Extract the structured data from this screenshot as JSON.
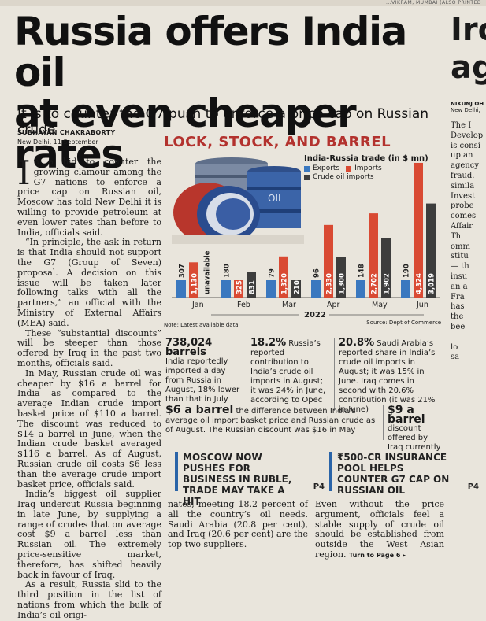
{
  "header": {
    "print_line": "...VIKRAM, MUMBAI (ALSO PRINTED",
    "headline_line1": "Russia offers India oil",
    "headline_line2": "at even cheaper rates",
    "subhead": "It is to counter the G7 push to enforce a price cap on Russian crude",
    "byline": "SUBHAYAN CHAKRABORTY",
    "dateline": "New Delhi, 11 September"
  },
  "sidebar": {
    "headline_line1": "Irc",
    "headline_line2": "ag",
    "byline": "NIKUNJ OH",
    "dateline": "New Delhi,",
    "lines": [
      "The I",
      "Develop",
      "is consi",
      "up an",
      "agency",
      "fraud.",
      "simila",
      "Invest",
      "probe",
      "comes",
      "Affair",
      "Th",
      "omm",
      "stitu",
      "— th",
      "insu",
      "an a",
      "Fra",
      "has",
      "the",
      "bee",
      "",
      "lo",
      "sa"
    ]
  },
  "article": {
    "dropcap": "I",
    "p1": "n a bid to counter the growing clamour among the G7 nations to enforce a price cap on Russian oil, Moscow has told New Delhi it is willing to provide petroleum at even lower rates than before to India, officials said.",
    "p2": "“In principle, the ask in return is that India should not support the G7 (Group of Seven) proposal. A decision on this issue will be taken later following talks with all the partners,” an official with the Ministry of External Affairs (MEA) said.",
    "p3": "These “substantial discounts” will be steeper than those offered by Iraq in the past two months, officials said.",
    "p4": "In May, Russian crude oil was cheaper by $16 a barrel for India as compared to the average Indian crude import basket price of $110 a barrel. The discount was reduced to $14 a barrel in June, when the Indian crude basket averaged $116 a barrel. As of August, Russian crude oil costs $6 less than the average crude import basket price, officials said.",
    "p5": "India’s biggest oil supplier Iraq undercut Russia beginning in late June, by supplying a range of crudes that on average cost $9 a barrel less than Russian oil. The extremely price-sensitive market, therefore, has shifted heavily back in favour of Iraq.",
    "p6": "As a result, Russia slid to the third position in the list of nations from which the bulk of India’s oil origi-",
    "col2_bottom": "nates, meeting 18.2 percent of all the country’s oil needs. Saudi Arabia (20.8 per cent), and Iraq (20.6 per cent) are the top two suppliers.",
    "col3_bottom": "Even without the price argument, officials feel a stable supply of crude oil should be established from outside the West Asian region.",
    "turn": "Turn to Page 6 ▸"
  },
  "graphic": {
    "title": "LOCK, STOCK, AND BARREL",
    "barrel_label": "OIL",
    "note": "Note: Latest available data",
    "source": "Source: Dept of Commerce"
  },
  "chart_data": {
    "type": "bar",
    "title": "India-Russia trade (in $ mn)",
    "xlabel": "2022",
    "categories": [
      "Jan",
      "Feb",
      "Mar",
      "Apr",
      "May",
      "Jun"
    ],
    "series": [
      {
        "name": "Exports",
        "color": "#3a78bf",
        "values": [
          307,
          180,
          79,
          96,
          148,
          190
        ]
      },
      {
        "name": "Imports",
        "color": "#d94a33",
        "values": [
          1130,
          325,
          1320,
          2330,
          2702,
          4324
        ]
      },
      {
        "name": "Crude oil imports",
        "color": "#3d3d3d",
        "values": [
          null,
          831,
          210,
          1300,
          1902,
          3019
        ]
      }
    ],
    "value_labels": [
      [
        "307",
        "1,130",
        "unavailable"
      ],
      [
        "180",
        "325",
        "831"
      ],
      [
        "79",
        "1,320",
        "210"
      ],
      [
        "96",
        "2,330",
        "1,300"
      ],
      [
        "148",
        "2,702",
        "1,902"
      ],
      [
        "190",
        "4,324",
        "3,019"
      ]
    ],
    "ylim": [
      0,
      4500
    ]
  },
  "stats": [
    {
      "big": "738,024 barrels",
      "text": "India reportedly imported a day from Russia in August, 18% lower than that in July"
    },
    {
      "big": "18.2%",
      "text": "Russia’s reported contribution to India’s crude oil imports in August; it was 24% in June, according to Opec"
    },
    {
      "big": "20.8%",
      "text": "Saudi Arabia’s reported share in India’s crude oil imports in August; it was 15% in June. Iraq comes in second with 20.6% contribution (it was 21% in June)"
    }
  ],
  "info2": [
    {
      "big": "$6 a barrel",
      "text": "the difference between India’s average oil import basket price and Russian crude as of August. The Russian discount was $16 in May"
    },
    {
      "big": "$9 a barrel",
      "text": "discount offered by Iraq currently"
    }
  ],
  "promos": [
    {
      "text": "MOSCOW NOW PUSHES FOR BUSINESS IN RUBLE, TRADE MAY TAKE A HIT",
      "page": "P4"
    },
    {
      "text": "₹500-CR INSURANCE POOL HELPS COUNTER G7 CAP ON RUSSIAN OIL",
      "page": "P4"
    }
  ]
}
